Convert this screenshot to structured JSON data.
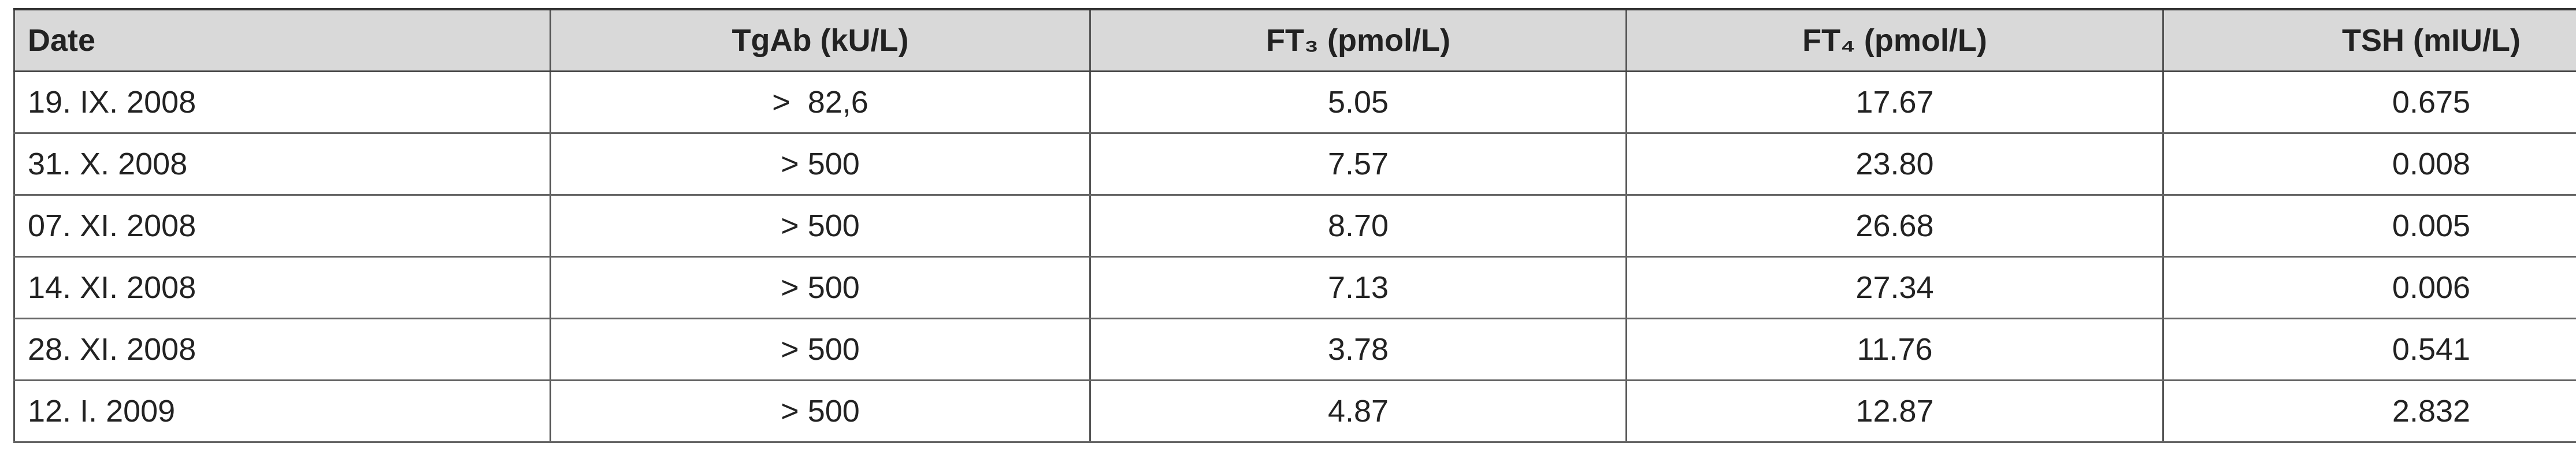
{
  "table": {
    "header": [
      "Date",
      "TgAb (kU/L)",
      "FT₃ (pmol/L)",
      "FT₄ (pmol/L)",
      "TSH (mIU/L)"
    ],
    "rows": [
      [
        "19. IX. 2008",
        ">  82,6",
        "5.05",
        "17.67",
        "0.675"
      ],
      [
        "31. X. 2008",
        "> 500",
        "7.57",
        "23.80",
        "0.008"
      ],
      [
        "07. XI. 2008",
        "> 500",
        "8.70",
        "26.68",
        "0.005"
      ],
      [
        "14. XI. 2008",
        "> 500",
        "7.13",
        "27.34",
        "0.006"
      ],
      [
        "28. XI. 2008",
        "> 500",
        "3.78",
        "11.76",
        "0.541"
      ],
      [
        "12. I. 2009",
        "> 500",
        "4.87",
        "12.87",
        "2.832"
      ]
    ]
  }
}
